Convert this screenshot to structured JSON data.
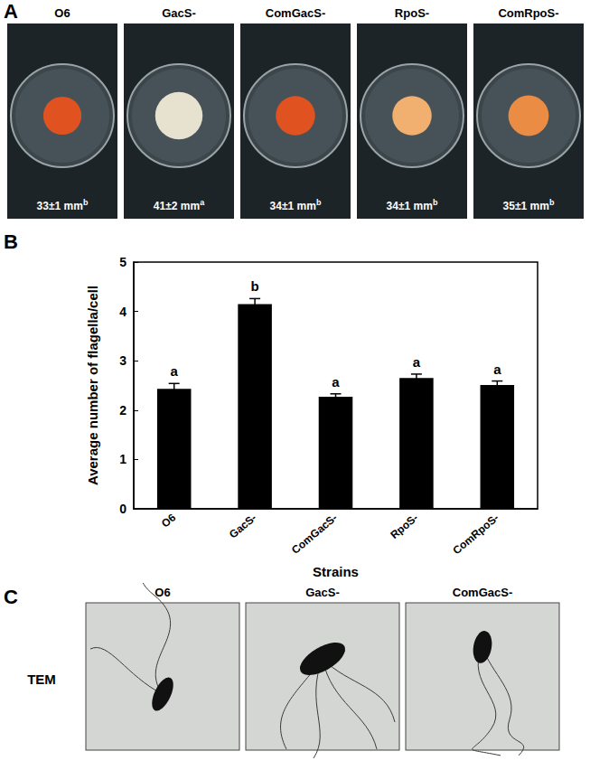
{
  "panel_a": {
    "letter": "A",
    "plates": [
      {
        "strain": "O6",
        "label": "33±1 mm",
        "superscript": "b",
        "diameter": 33,
        "color": "#e0521f"
      },
      {
        "strain": "GacS-",
        "label": "41±2 mm",
        "superscript": "a",
        "diameter": 41,
        "color": "#e6e2cf"
      },
      {
        "strain": "ComGacS-",
        "label": "34±1 mm",
        "superscript": "b",
        "diameter": 34,
        "color": "#e0521f"
      },
      {
        "strain": "RpoS-",
        "label": "34±1 mm",
        "superscript": "b",
        "diameter": 34,
        "color": "#f2b070"
      },
      {
        "strain": "ComRpoS-",
        "label": "35±1 mm",
        "superscript": "b",
        "diameter": 35,
        "color": "#ea8c44"
      }
    ]
  },
  "panel_b": {
    "letter": "B"
  },
  "chart_data": {
    "type": "bar",
    "categories": [
      "O6",
      "GacS-",
      "ComGacS-",
      "RpoS-",
      "ComRpoS-"
    ],
    "values": [
      2.43,
      4.15,
      2.27,
      2.65,
      2.51
    ],
    "errors": [
      0.11,
      0.11,
      0.06,
      0.08,
      0.08
    ],
    "significance_letters": [
      "a",
      "b",
      "a",
      "a",
      "a"
    ],
    "color": "#000000",
    "xlabel": "Strains",
    "ylabel": "Average number of flagella/cell",
    "ylim": [
      0,
      5
    ],
    "yticks": [
      0,
      1,
      2,
      3,
      4,
      5
    ],
    "grid": false
  },
  "panel_c": {
    "letter": "C",
    "row_label": "TEM",
    "images": [
      "O6",
      "GacS-",
      "ComGacS-"
    ]
  }
}
